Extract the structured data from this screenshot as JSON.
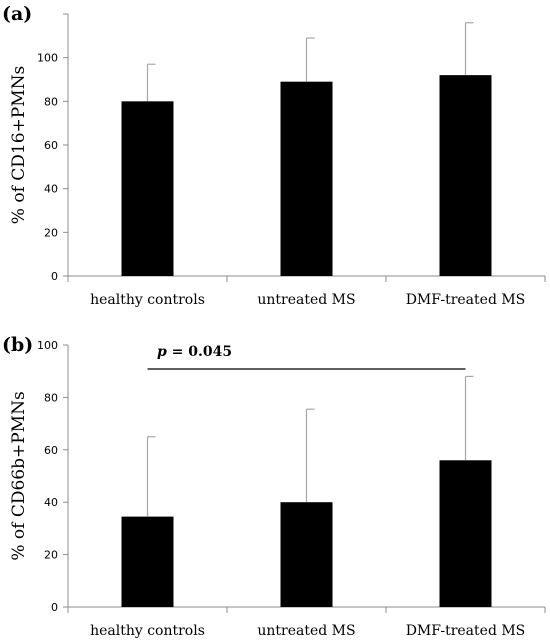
{
  "chart_data": [
    {
      "type": "bar",
      "panel": "(a)",
      "categories": [
        "healthy controls",
        "untreated MS",
        "DMF-treated MS"
      ],
      "values": [
        80,
        89,
        92
      ],
      "error_upper": [
        97,
        109,
        116
      ],
      "ylabel": "% of CD16+PMNs",
      "ylim": [
        0,
        120
      ],
      "yticks": [
        0,
        20,
        40,
        60,
        80,
        100
      ],
      "grid": false,
      "bar_color": "#000000",
      "error_color": "#a6a6a6"
    },
    {
      "type": "bar",
      "panel": "(b)",
      "categories": [
        "healthy controls",
        "untreated MS",
        "DMF-treated MS"
      ],
      "values": [
        34.5,
        40,
        56
      ],
      "error_upper": [
        65,
        75.5,
        88
      ],
      "ylabel": "% of CD66b+PMNs",
      "ylim": [
        0,
        100
      ],
      "yticks": [
        0,
        20,
        40,
        60,
        80,
        100
      ],
      "grid": false,
      "bar_color": "#000000",
      "error_color": "#a6a6a6",
      "annotation": {
        "p_symbol": "p",
        "text": " = 0.045",
        "from": "healthy controls",
        "to": "DMF-treated MS"
      }
    }
  ]
}
